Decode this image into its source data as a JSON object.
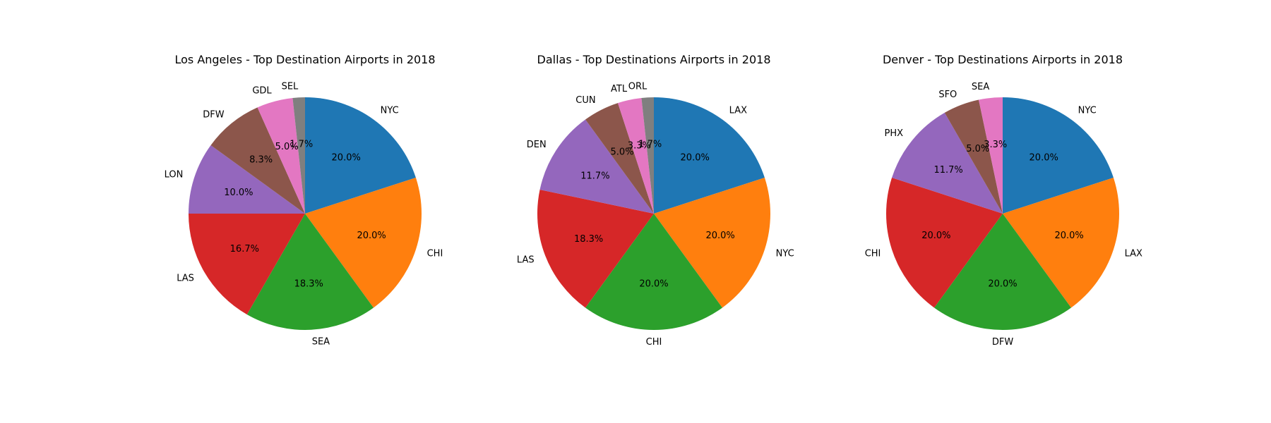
{
  "chart_data": [
    {
      "type": "pie",
      "title": "Los Angeles - Top Destination Airports in 2018",
      "start_angle_deg": 90,
      "direction": "clockwise",
      "categories": [
        "NYC",
        "CHI",
        "SEA",
        "LAS",
        "LON",
        "DFW",
        "GDL",
        "SEL"
      ],
      "values": [
        20.0,
        20.0,
        18.3,
        16.7,
        10.0,
        8.3,
        5.0,
        1.7
      ],
      "value_labels": [
        "20.0%",
        "20.0%",
        "18.3%",
        "16.7%",
        "10.0%",
        "8.3%",
        "5.0%",
        "1.7%"
      ],
      "colors": [
        "#1f77b4",
        "#ff7f0e",
        "#2ca02c",
        "#d62728",
        "#9467bd",
        "#8c564b",
        "#e377c2",
        "#7f7f7f"
      ]
    },
    {
      "type": "pie",
      "title": "Dallas - Top Destinations Airports in 2018",
      "start_angle_deg": 90,
      "direction": "clockwise",
      "categories": [
        "LAX",
        "NYC",
        "CHI",
        "LAS",
        "DEN",
        "CUN",
        "ATL",
        "ORL"
      ],
      "values": [
        20.0,
        20.0,
        20.0,
        18.3,
        11.7,
        5.0,
        3.3,
        1.7
      ],
      "value_labels": [
        "20.0%",
        "20.0%",
        "20.0%",
        "18.3%",
        "11.7%",
        "5.0%",
        "3.3%",
        "1.7%"
      ],
      "colors": [
        "#1f77b4",
        "#ff7f0e",
        "#2ca02c",
        "#d62728",
        "#9467bd",
        "#8c564b",
        "#e377c2",
        "#7f7f7f"
      ]
    },
    {
      "type": "pie",
      "title": "Denver - Top Destinations Airports in 2018",
      "start_angle_deg": 90,
      "direction": "clockwise",
      "categories": [
        "NYC",
        "LAX",
        "DFW",
        "CHI",
        "PHX",
        "SFO",
        "SEA"
      ],
      "values": [
        20.0,
        20.0,
        20.0,
        20.0,
        11.7,
        5.0,
        3.3
      ],
      "value_labels": [
        "20.0%",
        "20.0%",
        "20.0%",
        "20.0%",
        "11.7%",
        "5.0%",
        "3.3%"
      ],
      "colors": [
        "#1f77b4",
        "#ff7f0e",
        "#2ca02c",
        "#d62728",
        "#9467bd",
        "#8c564b",
        "#e377c2"
      ]
    }
  ]
}
